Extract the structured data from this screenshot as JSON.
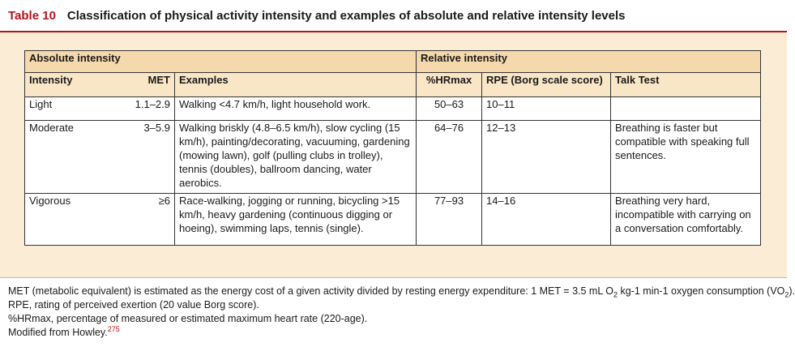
{
  "table": {
    "number": "Table 10",
    "title": "Classification of physical activity intensity and examples of absolute and relative intensity levels"
  },
  "groups": {
    "absolute": "Absolute intensity",
    "relative": "Relative intensity"
  },
  "columns": {
    "intensity": "Intensity",
    "met": "MET",
    "examples": "Examples",
    "hrmax": "%HRmax",
    "rpe": "RPE (Borg scale score)",
    "talk": "Talk Test"
  },
  "rows": [
    {
      "intensity": "Light",
      "met": "1.1–2.9",
      "examples": "Walking <4.7 km/h, light household work.",
      "hrmax": "50–63",
      "rpe": "10–11",
      "talk": ""
    },
    {
      "intensity": "Moderate",
      "met": "3–5.9",
      "examples": "Walking briskly (4.8–6.5 km/h), slow cycling (15 km/h), painting/decorating, vacuuming, gardening (mowing lawn), golf (pulling clubs in trolley), tennis (doubles), ballroom dancing, water aerobics.",
      "hrmax": "64–76",
      "rpe": "12–13",
      "talk": "Breathing is faster but compatible with speaking full sentences."
    },
    {
      "intensity": "Vigorous",
      "met": "≥6",
      "examples": "Race-walking, jogging or running, bicycling >15 km/h, heavy gardening (continuous digging or hoeing), swimming laps, tennis (single).",
      "hrmax": "77–93",
      "rpe": "14–16",
      "talk": "Breathing very hard, incompatible with carrying on a conversation comfortably."
    }
  ],
  "footnotes": {
    "met_a": "MET (metabolic equivalent) is estimated as the energy cost of a given activity divided by resting energy expenditure: 1 MET = 3.5 mL O",
    "met_sub1": "2",
    "met_b": " kg-1 min-1 oxygen consumption (VO",
    "met_sub2": "2",
    "met_c": ").",
    "rpe": "RPE, rating of perceived exertion (20 value Borg score).",
    "hrmax": "%HRmax, percentage of measured or estimated maximum heart rate (220-age).",
    "source": "Modified from Howley.",
    "source_ref": "275"
  },
  "colors": {
    "accent": "#b5121b",
    "panel": "#fbecd5",
    "group_header": "#f5d9ac",
    "column_header": "#f9e6c6"
  }
}
